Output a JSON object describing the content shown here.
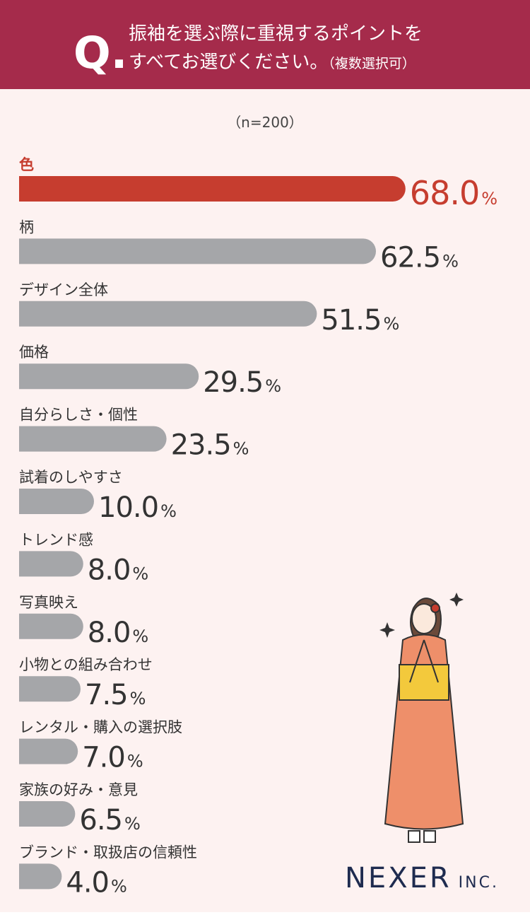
{
  "chart_data": {
    "type": "hbar",
    "mark": "Q.",
    "title_lines": [
      "振袖を選ぶ際に重視するポイントを",
      "すべてお選びください。"
    ],
    "title_note": "（複数選択可）",
    "subtitle": "（n=200）",
    "categories": [
      "色",
      "柄",
      "デザイン全体",
      "価格",
      "自分らしさ・個性",
      "試着のしやすさ",
      "トレンド感",
      "写真映え",
      "小物との組み合わせ",
      "レンタル・購入の選択肢",
      "家族の好み・意見",
      "ブランド・取扱店の信頼性"
    ],
    "values": [
      68.0,
      62.5,
      51.5,
      29.5,
      23.5,
      10.0,
      8.0,
      8.0,
      7.5,
      7.0,
      6.5,
      4.0
    ],
    "value_labels": [
      "68.0",
      "62.5",
      "51.5",
      "29.5",
      "23.5",
      "10.0",
      "8.0",
      "8.0",
      "7.5",
      "7.0",
      "6.5",
      "4.0"
    ],
    "value_unit": "%",
    "colors": [
      "#c63d2f",
      "#a5a6a9",
      "#a5a6a9",
      "#a5a6a9",
      "#a5a6a9",
      "#a5a6a9",
      "#a5a6a9",
      "#a5a6a9",
      "#a5a6a9",
      "#a5a6a9",
      "#a5a6a9",
      "#a5a6a9"
    ],
    "logo": "NEXER",
    "logo_suffix": "INC."
  }
}
